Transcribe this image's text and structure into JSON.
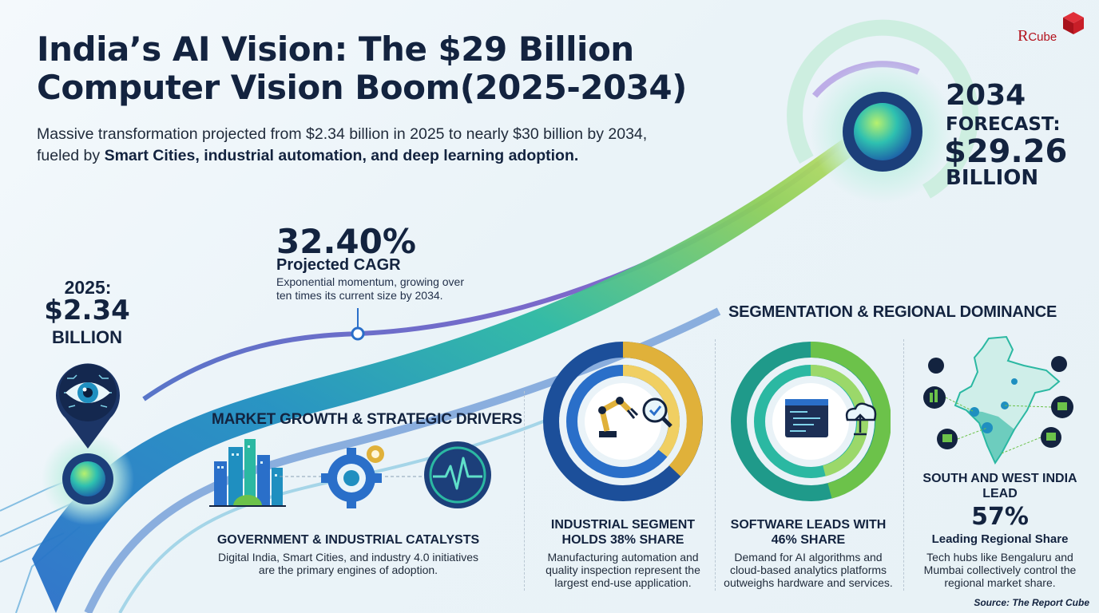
{
  "header": {
    "title_line1": "India’s AI Vision: The $29 Billion",
    "title_line2": "Computer Vision Boom(2025-2034)",
    "subtitle_plain": "Massive transformation projected from $2.34 billion in 2025 to nearly $30 billion by 2034, fueled by ",
    "subtitle_bold": "Smart Cities, industrial automation, and deep learning adoption."
  },
  "logo": {
    "mark": "Я",
    "text": "Cube"
  },
  "forecast": {
    "year": "2034",
    "label": "FORECAST:",
    "value": "$29.26",
    "unit": "BILLION"
  },
  "start": {
    "year": "2025:",
    "value": "$2.34",
    "unit": "BILLION"
  },
  "cagr": {
    "value": "32.40%",
    "label": "Projected CAGR",
    "description": "Exponential momentum, growing over ten times its current size by 2034."
  },
  "drivers": {
    "heading": "MARKET GROWTH & STRATEGIC DRIVERS",
    "card_title": "GOVERNMENT & INDUSTRIAL CATALYSTS",
    "card_body": "Digital India, Smart Cities, and industry 4.0 initiatives are the primary engines of adoption."
  },
  "segmentation": {
    "heading": "SEGMENTATION & REGIONAL DOMINANCE",
    "industrial": {
      "title": "INDUSTRIAL SEGMENT HOLDS 38% SHARE",
      "share": 38,
      "body": "Manufacturing automation and quality inspection represent the largest end-use application."
    },
    "software": {
      "title": "SOFTWARE LEADS WITH 46% SHARE",
      "share": 46,
      "body": "Demand for AI algorithms and cloud-based analytics platforms outweighs hardware and services."
    },
    "regional": {
      "title": "SOUTH AND WEST INDIA LEAD",
      "value": "57%",
      "label": "Leading Regional Share",
      "body": "Tech hubs like Bengaluru and Mumbai collectively control the regional market share."
    }
  },
  "source": "Source: The Report Cube",
  "colors": {
    "navy": "#13233f",
    "teal": "#1fb5a5",
    "blue": "#2a6fc9",
    "purple": "#6a4fc2",
    "gold": "#e0b13a",
    "green": "#6cc24a"
  },
  "icons": [
    "eye-icon",
    "city-icon",
    "gear-icon",
    "pulse-icon",
    "robot-arm-icon",
    "magnifier-icon",
    "code-window-icon",
    "cloud-upload-icon",
    "india-map-icon"
  ]
}
